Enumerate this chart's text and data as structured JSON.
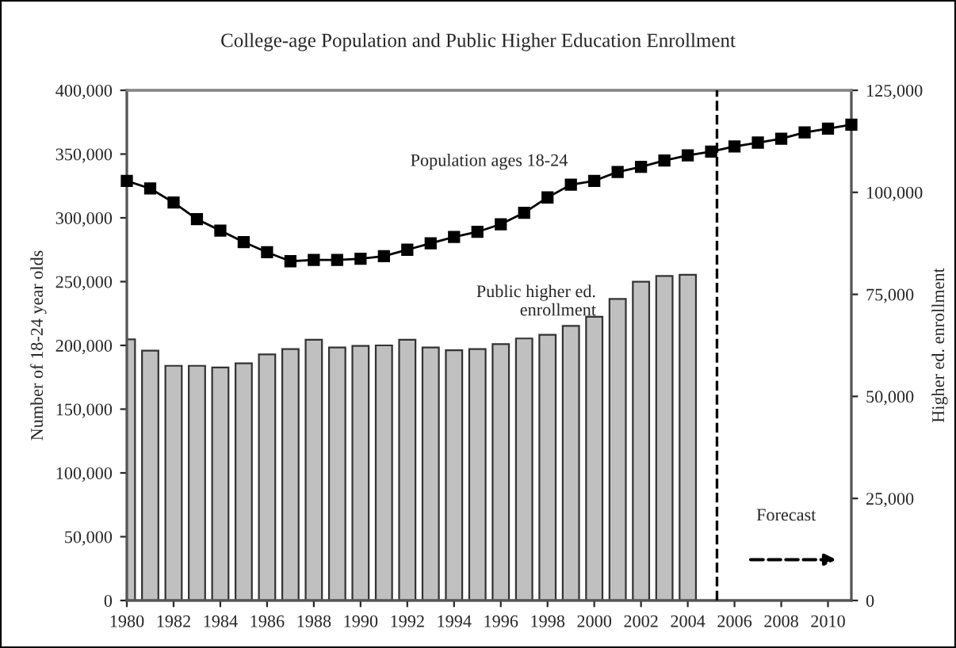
{
  "chart_data": {
    "type": "bar",
    "title": "College-age Population and Public Higher Education Enrollment",
    "xlabel": null,
    "ylabel": "Number of 18-24 year olds",
    "y2label": "Higher ed. enrollment",
    "x": [
      1980,
      1981,
      1982,
      1983,
      1984,
      1985,
      1986,
      1987,
      1988,
      1989,
      1990,
      1991,
      1992,
      1993,
      1994,
      1995,
      1996,
      1997,
      1998,
      1999,
      2000,
      2001,
      2002,
      2003,
      2004,
      2005,
      2006,
      2007,
      2008,
      2009,
      2010,
      2011
    ],
    "series": [
      {
        "name": "Public higher ed. enrollment",
        "axis": "y2",
        "color": "#c0c0c0",
        "values": [
          64000,
          61200,
          57500,
          57500,
          57100,
          58100,
          60300,
          61600,
          63900,
          62000,
          62400,
          62500,
          63900,
          62000,
          61300,
          61600,
          62800,
          64200,
          65100,
          67300,
          69500,
          73900,
          78100,
          79500,
          79800,
          null,
          null,
          null,
          null,
          null,
          null,
          null
        ]
      },
      {
        "name": "Population ages 18-24",
        "type": "line",
        "axis": "y",
        "color": "#000000",
        "marker": "square",
        "line_style": "solid",
        "values": [
          329000,
          323000,
          312000,
          299000,
          290000,
          281000,
          273000,
          266000,
          267000,
          267000,
          268000,
          270000,
          275000,
          280000,
          285000,
          289000,
          295000,
          304000,
          316000,
          326000,
          329000,
          336000,
          340000,
          345000,
          349000,
          352000,
          356000,
          359000,
          362000,
          367000,
          370000,
          373000
        ]
      }
    ],
    "xlim": [
      1980,
      2011
    ],
    "xticks": [
      1980,
      1982,
      1984,
      1986,
      1988,
      1990,
      1992,
      1994,
      1996,
      1998,
      2000,
      2002,
      2004,
      2006,
      2008,
      2010
    ],
    "ylim": [
      0,
      400000
    ],
    "yticks": [
      {
        "value": 0,
        "label": "0"
      },
      {
        "value": 50000,
        "label": "50,000"
      },
      {
        "value": 100000,
        "label": "100,000"
      },
      {
        "value": 150000,
        "label": "150,000"
      },
      {
        "value": 200000,
        "label": "200,000"
      },
      {
        "value": 250000,
        "label": "250,000"
      },
      {
        "value": 300000,
        "label": "300,000"
      },
      {
        "value": 350000,
        "label": "350,000"
      },
      {
        "value": 400000,
        "label": "400,000"
      }
    ],
    "y2lim": [
      0,
      125000
    ],
    "y2ticks": [
      {
        "value": 0,
        "label": "0"
      },
      {
        "value": 25000,
        "label": "25,000"
      },
      {
        "value": 50000,
        "label": "50,000"
      },
      {
        "value": 75000,
        "label": "75,000"
      },
      {
        "value": 100000,
        "label": "100,000"
      },
      {
        "value": 125000,
        "label": "125,000"
      }
    ],
    "ref_lines": [
      {
        "axis": "x",
        "value": 2005.25,
        "line_style": "dashed",
        "color": "#000000"
      }
    ],
    "annotations": [
      "Forecast"
    ],
    "grid": false,
    "legend": false
  }
}
